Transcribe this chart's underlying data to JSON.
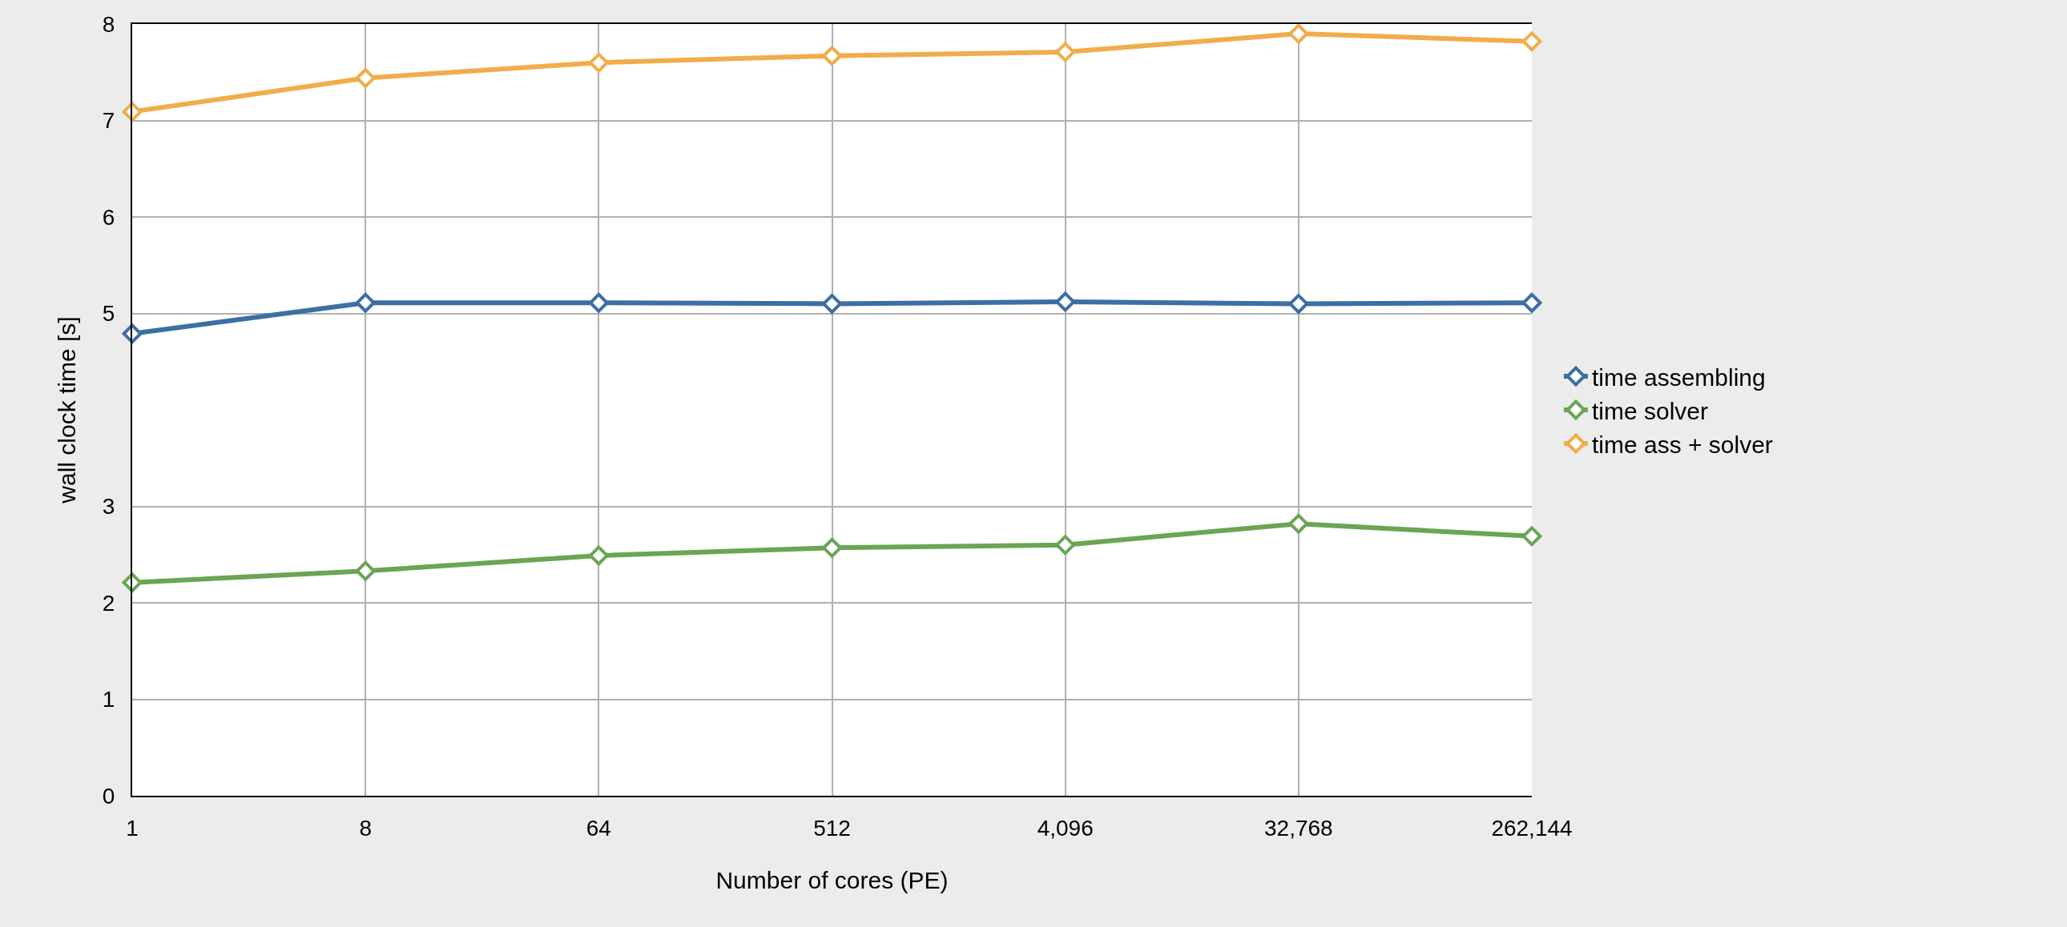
{
  "chart_data": {
    "type": "line",
    "xlabel": "Number of cores (PE)",
    "ylabel": "wall clock time [s]",
    "categories": [
      "1",
      "8",
      "64",
      "512",
      "4,096",
      "32,768",
      "262,144"
    ],
    "series": [
      {
        "name": "time assembling",
        "color": "#3d6ea5",
        "values": [
          4.79,
          5.11,
          5.11,
          5.1,
          5.12,
          5.1,
          5.11
        ]
      },
      {
        "name": "time solver",
        "color": "#6aa556",
        "values": [
          2.21,
          2.33,
          2.49,
          2.57,
          2.6,
          2.82,
          2.69
        ]
      },
      {
        "name": "time ass + solver",
        "color": "#f0ad4a",
        "values": [
          7.09,
          7.44,
          7.6,
          7.67,
          7.71,
          7.9,
          7.82
        ]
      }
    ],
    "ylim": [
      0,
      8
    ],
    "yticks": [
      0,
      1,
      2,
      3,
      5,
      6,
      7,
      8
    ],
    "grid": true,
    "legend": "right",
    "marker": "diamond",
    "line_style": "solid"
  }
}
